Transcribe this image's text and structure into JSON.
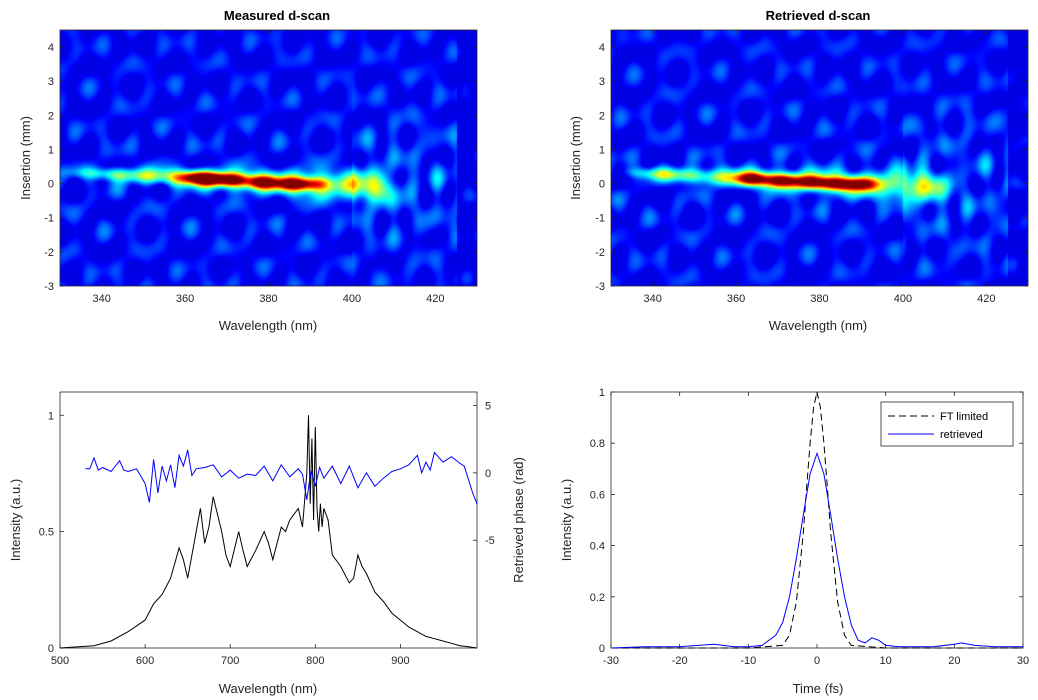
{
  "chart_data": [
    {
      "type": "heatmap",
      "title": "Measured d-scan",
      "xlabel": "Wavelength (nm)",
      "ylabel": "Insertion (mm)",
      "xlim": [
        330,
        430
      ],
      "ylim": [
        -3,
        4.5
      ],
      "xticks": [
        340,
        360,
        380,
        400,
        420
      ],
      "yticks": [
        -3,
        -2,
        -1,
        0,
        1,
        2,
        3,
        4
      ],
      "colormap": "jet",
      "trace_end_nm": 405,
      "peak_points": [
        {
          "x": 362,
          "y": 0.2,
          "v": 0.85
        },
        {
          "x": 366,
          "y": 0.15,
          "v": 0.95
        },
        {
          "x": 371,
          "y": 0.12,
          "v": 1.0
        },
        {
          "x": 378,
          "y": 0.05,
          "v": 0.95
        },
        {
          "x": 385,
          "y": 0.0,
          "v": 0.8
        },
        {
          "x": 390,
          "y": 0.0,
          "v": 0.8
        }
      ]
    },
    {
      "type": "heatmap",
      "title": "Retrieved d-scan",
      "xlabel": "Wavelength (nm)",
      "ylabel": "Insertion (mm)",
      "xlim": [
        330,
        430
      ],
      "ylim": [
        -3,
        4.5
      ],
      "xticks": [
        340,
        360,
        380,
        400,
        420
      ],
      "yticks": [
        -3,
        -2,
        -1,
        0,
        1,
        2,
        3,
        4
      ],
      "colormap": "jet",
      "trace_end_nm": 405,
      "peak_points": [
        {
          "x": 364,
          "y": 0.15,
          "v": 1.0
        },
        {
          "x": 371,
          "y": 0.1,
          "v": 1.0
        },
        {
          "x": 378,
          "y": 0.05,
          "v": 0.95
        },
        {
          "x": 384,
          "y": 0.0,
          "v": 0.9
        },
        {
          "x": 390,
          "y": 0.0,
          "v": 0.85
        }
      ]
    },
    {
      "type": "line",
      "xlabel": "Wavelength (nm)",
      "ylabel": "Intensity (a.u.)",
      "y2label": "Retrieved phase (rad)",
      "xlim": [
        500,
        990
      ],
      "ylim": [
        0,
        1.1
      ],
      "y2lim": [
        -13,
        6
      ],
      "xticks": [
        500,
        600,
        700,
        800,
        900
      ],
      "yticks": [
        0,
        0.5,
        1
      ],
      "y2ticks": [
        -5,
        0,
        5
      ],
      "series": [
        {
          "color": "#000000",
          "axis": "left",
          "x": [
            500,
            540,
            560,
            580,
            600,
            610,
            620,
            630,
            640,
            645,
            650,
            660,
            665,
            670,
            675,
            680,
            690,
            695,
            700,
            710,
            715,
            720,
            730,
            740,
            745,
            750,
            760,
            765,
            770,
            780,
            785,
            790,
            792,
            794,
            796,
            798,
            800,
            802,
            804,
            806,
            808,
            810,
            815,
            820,
            830,
            840,
            845,
            850,
            855,
            860,
            870,
            880,
            890,
            900,
            910,
            920,
            930,
            940,
            950,
            960,
            970,
            980,
            990
          ],
          "y": [
            0,
            0.01,
            0.03,
            0.07,
            0.12,
            0.19,
            0.23,
            0.3,
            0.43,
            0.38,
            0.3,
            0.5,
            0.6,
            0.45,
            0.52,
            0.65,
            0.5,
            0.4,
            0.35,
            0.5,
            0.42,
            0.35,
            0.42,
            0.5,
            0.45,
            0.38,
            0.52,
            0.5,
            0.55,
            0.6,
            0.52,
            0.75,
            1.0,
            0.62,
            0.9,
            0.55,
            0.95,
            0.6,
            0.5,
            0.62,
            0.52,
            0.6,
            0.55,
            0.4,
            0.35,
            0.28,
            0.3,
            0.4,
            0.35,
            0.32,
            0.24,
            0.2,
            0.15,
            0.12,
            0.09,
            0.07,
            0.05,
            0.04,
            0.03,
            0.02,
            0.01,
            0.005,
            0
          ]
        },
        {
          "color": "#0000ff",
          "axis": "right",
          "x": [
            530,
            535,
            540,
            545,
            550,
            560,
            570,
            575,
            580,
            590,
            600,
            605,
            610,
            615,
            620,
            625,
            630,
            635,
            640,
            645,
            650,
            655,
            660,
            670,
            680,
            690,
            700,
            710,
            720,
            730,
            740,
            750,
            760,
            770,
            780,
            785,
            790,
            795,
            800,
            805,
            810,
            820,
            830,
            840,
            850,
            860,
            870,
            880,
            890,
            900,
            910,
            920,
            925,
            930,
            935,
            940,
            950,
            960,
            970,
            975,
            980,
            985,
            990
          ],
          "y": [
            0.3,
            0.3,
            1.1,
            0.2,
            0.4,
            0.1,
            0.9,
            0.2,
            0.1,
            0.3,
            -0.8,
            -2.2,
            1.0,
            -1.5,
            0.5,
            -0.6,
            0.6,
            -1.1,
            1.3,
            0.5,
            1.7,
            -0.2,
            0.3,
            0.4,
            0.6,
            -0.3,
            0.2,
            -0.4,
            -0.1,
            -0.2,
            0.5,
            -0.6,
            0.6,
            -0.3,
            0.3,
            -0.1,
            -2.0,
            0.2,
            -1.0,
            0.4,
            -0.4,
            0.5,
            -0.8,
            0.5,
            -1.1,
            0.0,
            -1.0,
            -0.4,
            0.1,
            0.3,
            0.6,
            1.3,
            0.0,
            0.8,
            0.2,
            1.5,
            0.8,
            1.2,
            0.7,
            0.5,
            -0.5,
            -1.5,
            -2.3
          ]
        }
      ]
    },
    {
      "type": "line",
      "xlabel": "Time (fs)",
      "ylabel": "Intensity (a.u.)",
      "xlim": [
        -30,
        30
      ],
      "ylim": [
        0,
        1
      ],
      "xticks": [
        -30,
        -20,
        -10,
        0,
        10,
        20,
        30
      ],
      "yticks": [
        0,
        0.2,
        0.4,
        0.6,
        0.8,
        1
      ],
      "legend": "top-right",
      "series": [
        {
          "name": "FT limited",
          "color": "#000000",
          "dash": true,
          "x": [
            -30,
            -10,
            -5,
            -4,
            -3,
            -2,
            -1.5,
            -1,
            -0.5,
            0,
            0.5,
            1,
            1.5,
            2,
            3,
            4,
            5,
            10,
            30
          ],
          "y": [
            0,
            0,
            0.01,
            0.05,
            0.18,
            0.45,
            0.63,
            0.8,
            0.94,
            1.0,
            0.94,
            0.8,
            0.63,
            0.45,
            0.18,
            0.05,
            0.01,
            0,
            0
          ]
        },
        {
          "name": "retrieved",
          "color": "#0000ff",
          "dash": false,
          "x": [
            -30,
            -25,
            -20,
            -15,
            -12,
            -10,
            -8,
            -6,
            -5,
            -4,
            -3,
            -2,
            -1,
            0,
            1,
            2,
            3,
            4,
            5,
            6,
            7,
            8,
            9,
            10,
            12,
            14,
            17,
            20,
            21,
            23,
            26,
            30
          ],
          "y": [
            0,
            0.005,
            0.005,
            0.015,
            0.005,
            0.005,
            0.01,
            0.05,
            0.1,
            0.2,
            0.35,
            0.52,
            0.68,
            0.76,
            0.68,
            0.52,
            0.35,
            0.2,
            0.09,
            0.03,
            0.02,
            0.04,
            0.03,
            0.01,
            0.005,
            0.005,
            0.005,
            0.015,
            0.02,
            0.01,
            0.005,
            0.005
          ]
        }
      ]
    }
  ]
}
